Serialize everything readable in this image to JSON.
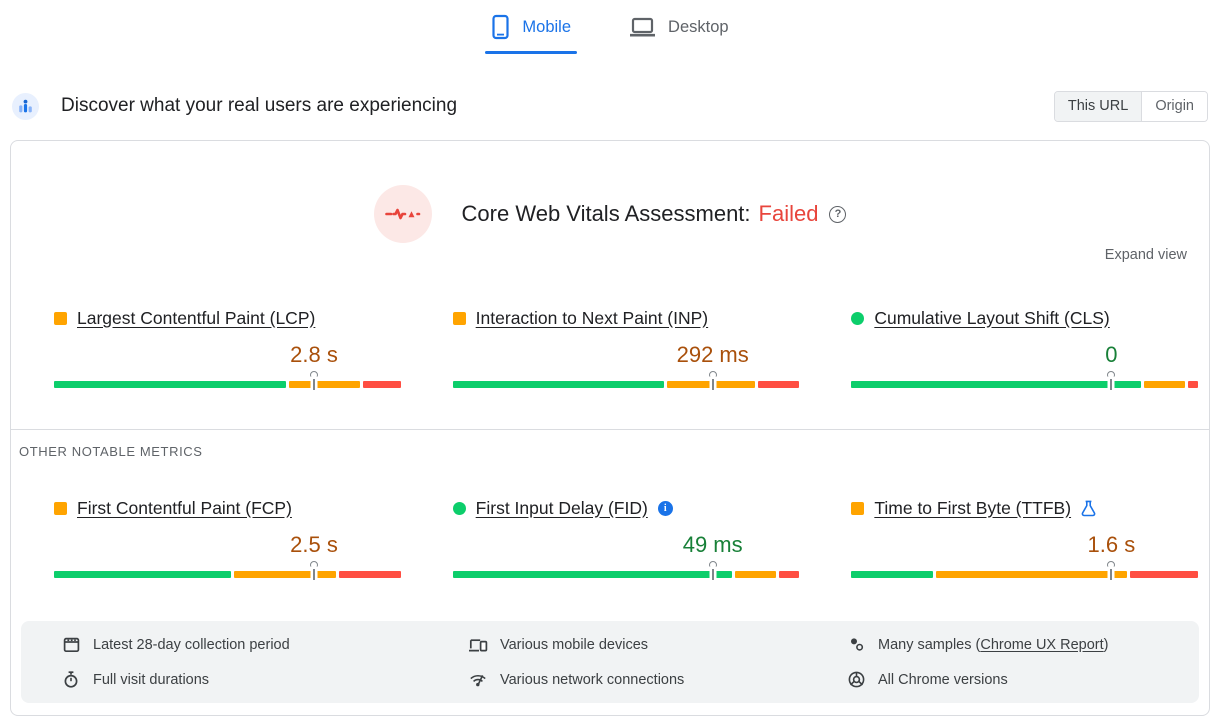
{
  "tabs": {
    "mobile": {
      "label": "Mobile",
      "active": true
    },
    "desktop": {
      "label": "Desktop",
      "active": false
    }
  },
  "header": {
    "title": "Discover what your real users are experiencing",
    "toggle": {
      "this_url": "This URL",
      "origin": "Origin",
      "selected": "This URL"
    }
  },
  "assessment": {
    "label": "Core Web Vitals Assessment:",
    "status": "Failed",
    "expand_label": "Expand view"
  },
  "section_label": "OTHER NOTABLE METRICS",
  "metrics": [
    {
      "id": "lcp",
      "title": "Largest Contentful Paint (LCP)",
      "value": "2.8 s",
      "rating": "needs-improvement",
      "distribution": {
        "good": 68,
        "needs_improvement": 21,
        "poor": 11
      },
      "p75_marker_pct": 75,
      "badge": null
    },
    {
      "id": "inp",
      "title": "Interaction to Next Paint (INP)",
      "value": "292 ms",
      "rating": "needs-improvement",
      "distribution": {
        "good": 62,
        "needs_improvement": 26,
        "poor": 12
      },
      "p75_marker_pct": 75,
      "badge": null
    },
    {
      "id": "cls",
      "title": "Cumulative Layout Shift (CLS)",
      "value": "0",
      "rating": "good",
      "distribution": {
        "good": 85,
        "needs_improvement": 12,
        "poor": 3
      },
      "p75_marker_pct": 75,
      "badge": null
    },
    {
      "id": "fcp",
      "title": "First Contentful Paint (FCP)",
      "value": "2.5 s",
      "rating": "needs-improvement",
      "distribution": {
        "good": 52,
        "needs_improvement": 30,
        "poor": 18
      },
      "p75_marker_pct": 75,
      "badge": "info"
    },
    {
      "id": "fid",
      "title": "First Input Delay (FID)",
      "value": "49 ms",
      "rating": "good",
      "distribution": {
        "good": 82,
        "needs_improvement": 12,
        "poor": 6
      },
      "p75_marker_pct": 75,
      "badge": "info"
    },
    {
      "id": "ttfb",
      "title": "Time to First Byte (TTFB)",
      "value": "1.6 s",
      "rating": "needs-improvement",
      "distribution": {
        "good": 24,
        "needs_improvement": 56,
        "poor": 20
      },
      "p75_marker_pct": 75,
      "badge": "experimental-flask"
    }
  ],
  "footer": {
    "items": [
      {
        "icon": "calendar-icon",
        "text": "Latest 28-day collection period"
      },
      {
        "icon": "stopwatch-icon",
        "text": "Full visit durations"
      },
      {
        "icon": "devices-icon",
        "text": "Various mobile devices"
      },
      {
        "icon": "network-icon",
        "text": "Various network connections"
      },
      {
        "icon": "samples-icon",
        "text_prefix": "Many samples (",
        "link_text": "Chrome UX Report",
        "text_suffix": ")"
      },
      {
        "icon": "chrome-icon",
        "text": "All Chrome versions"
      }
    ]
  },
  "colors": {
    "accent_blue": "#1a73e8",
    "good": "#0cce6b",
    "needs_improvement": "#ffa400",
    "poor": "#ff4e42",
    "value_good_text": "#188038",
    "value_ni_text": "#a9500b",
    "failed_red": "#e8453c",
    "footer_bg": "#f1f3f4",
    "border_gray": "#dadce0"
  }
}
